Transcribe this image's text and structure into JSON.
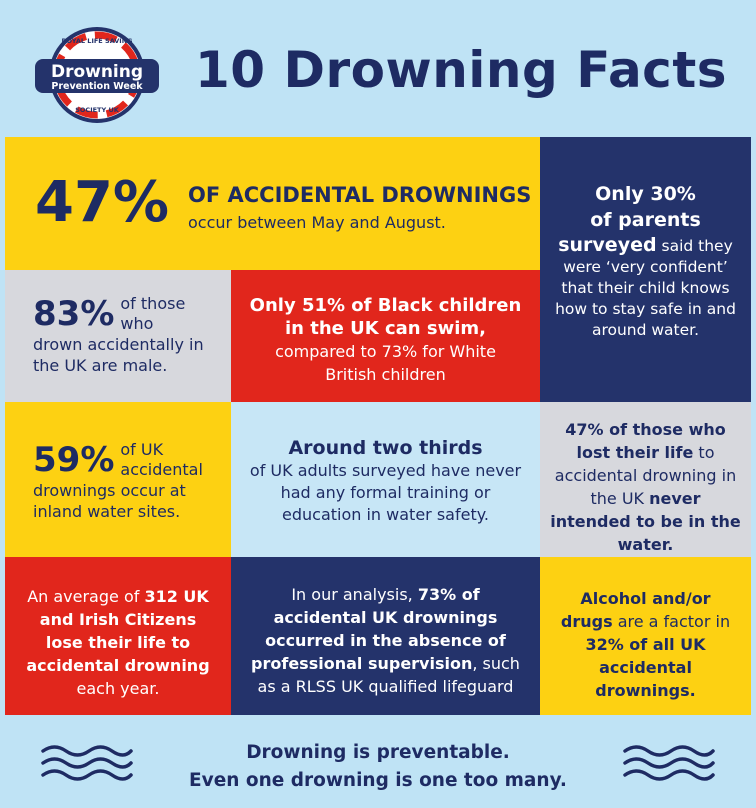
{
  "header": {
    "title": "10 Drowning Facts",
    "logo": {
      "top_text": "ROYAL LIFE SAVING",
      "main_text": "Drowning",
      "sub_text": "Prevention Week",
      "bottom_text": "SOCIETY UK"
    }
  },
  "facts": {
    "f1": {
      "stat": "47%",
      "headline": "OF ACCIDENTAL DROWNINGS",
      "detail": "occur between May and August."
    },
    "f2": {
      "part1": "Only 30%",
      "part2": "of parents",
      "part3": "surveyed",
      "part4": " said they were ‘very confident’ that their child knows how to stay safe in and around water."
    },
    "f3": {
      "stat": "83%",
      "part1": "of those who",
      "part2": "drown accidentally in the UK are male."
    },
    "f4": {
      "part1": "Only 51% of Black children in the UK can swim,",
      "part2": " compared to 73% for White British children"
    },
    "f5": {
      "stat": "59%",
      "part1": "of UK accidental",
      "part2": "drownings occur at inland water sites."
    },
    "f6": {
      "part1": "Around two thirds",
      "part2": "of UK adults surveyed have never had any formal training or education in water safety."
    },
    "f7": {
      "part1": "47% of those who lost their life",
      "part2": " to accidental drowning in the UK ",
      "part3": "never intended to be in the water."
    },
    "f8": {
      "part1": "An average of ",
      "part2": "312 UK and Irish Citizens lose their life to accidental drowning",
      "part3": " each year."
    },
    "f9": {
      "part1": "In our analysis, ",
      "part2": "73% of accidental UK drownings occurred in the absence of professional supervision",
      "part3": ", such as a RLSS UK qualified lifeguard"
    },
    "f10": {
      "part1": "Alcohol and/or drugs",
      "part2": " are a factor in ",
      "part3": "32% of all UK accidental drownings."
    }
  },
  "footer": {
    "line1": "Drowning is preventable.",
    "line2": "Even one drowning is one too many."
  },
  "colors": {
    "navy": "#24336b",
    "yellow": "#fdd112",
    "red": "#e1261c",
    "grey": "#d7d8dd",
    "light_blue": "#bfe3f5"
  }
}
